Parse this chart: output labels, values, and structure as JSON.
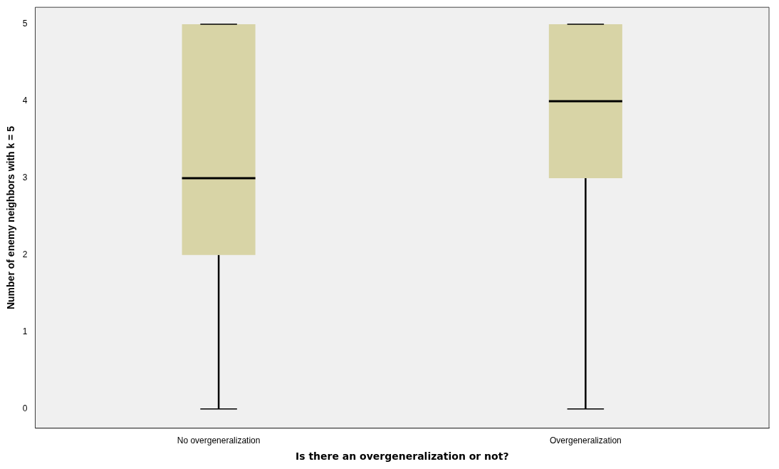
{
  "chart_data": {
    "type": "box",
    "xlabel": "Is there an overgeneralization or not?",
    "ylabel": "Number of enemy neighbors with k = 5",
    "categories": [
      "No overgeneralization",
      "Overgeneralization"
    ],
    "boxes": [
      {
        "low": 0,
        "q1": 2,
        "median": 3,
        "q3": 5,
        "high": 5
      },
      {
        "low": 0,
        "q1": 3,
        "median": 4,
        "q3": 5,
        "high": 5
      }
    ],
    "color": "#d8d4a6",
    "ylim": [
      -0.25,
      5.22
    ],
    "yticks": [
      0,
      1,
      2,
      3,
      4,
      5
    ]
  }
}
